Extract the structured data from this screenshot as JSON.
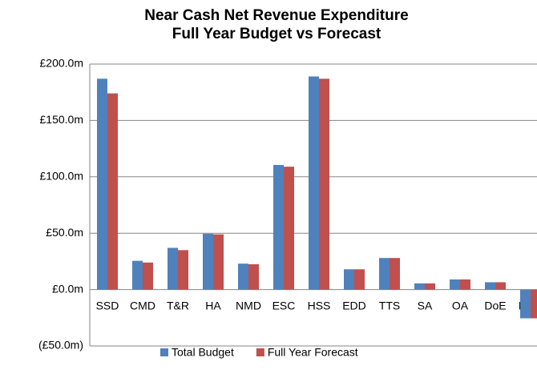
{
  "chart_data": {
    "type": "bar",
    "title": [
      "Near Cash Net Revenue Expenditure",
      "Full Year Budget vs Forecast"
    ],
    "categories": [
      "SSD",
      "CMD",
      "T&R",
      "HA",
      "NMD",
      "ESC",
      "HSS",
      "EDD",
      "TTS",
      "SA",
      "OA",
      "DoE",
      "HSG"
    ],
    "series": [
      {
        "name": "Total Budget",
        "color": "#4f81bd",
        "values": [
          187,
          25.5,
          37,
          49.5,
          23,
          110.5,
          189,
          18,
          28,
          5.5,
          9,
          6.5,
          -25.5
        ]
      },
      {
        "name": "Full Year Forecast",
        "color": "#c0504d",
        "values": [
          174,
          24,
          35,
          49,
          22.5,
          109,
          187,
          18,
          28,
          5.5,
          9,
          6.5,
          -25.5
        ]
      }
    ],
    "ylim": [
      -50,
      200
    ],
    "yticks": [
      {
        "value": -50,
        "label": "(£50.0m)"
      },
      {
        "value": 0,
        "label": "£0.0m"
      },
      {
        "value": 50,
        "label": "£50.0m"
      },
      {
        "value": 100,
        "label": "£100.0m"
      },
      {
        "value": 150,
        "label": "£150.0m"
      },
      {
        "value": 200,
        "label": "£200.0m"
      }
    ],
    "grid": true,
    "legend": "bottom"
  }
}
